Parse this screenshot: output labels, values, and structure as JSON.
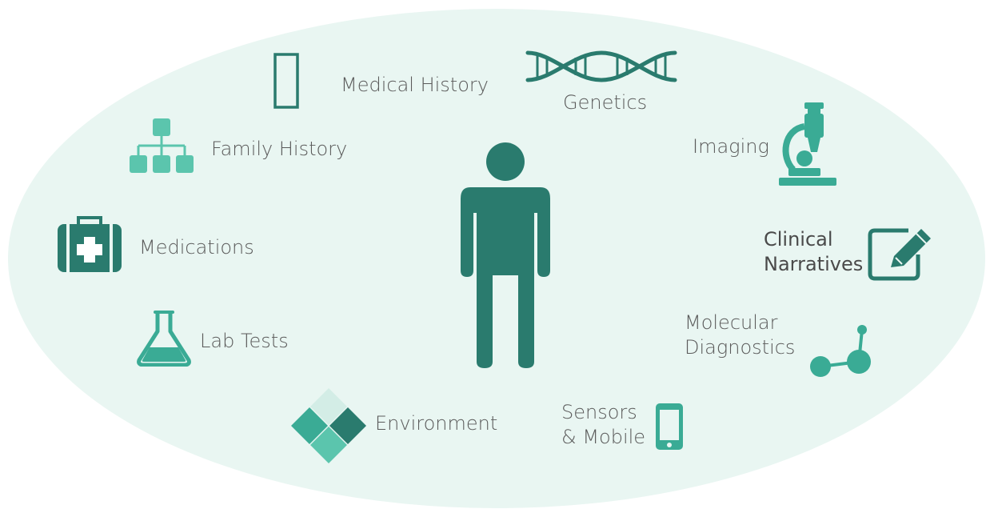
{
  "colors": {
    "background_ellipse": "#e9f6f2",
    "dark_teal": "#2a7b6e",
    "medium_teal": "#3aab95",
    "light_teal": "#5bc5ad",
    "pale_teal": "#d3ede6",
    "label_text": "#5a5a5a"
  },
  "center": {
    "icon": "person-icon"
  },
  "items": {
    "medical_history": {
      "label": "Medical History",
      "icon": "medical-history-icon"
    },
    "genetics": {
      "label": "Genetics",
      "icon": "dna-icon"
    },
    "family_history": {
      "label": "Family History",
      "icon": "family-tree-icon"
    },
    "imaging": {
      "label": "Imaging",
      "icon": "microscope-icon"
    },
    "medications": {
      "label": "Medications",
      "icon": "first-aid-kit-icon"
    },
    "clinical_narratives": {
      "line1": "Clinical",
      "line2": "Narratives",
      "icon": "pencil-note-icon"
    },
    "lab_tests": {
      "label": "Lab Tests",
      "icon": "flask-icon"
    },
    "molecular_diagnostics": {
      "line1": "Molecular",
      "line2": "Diagnostics",
      "icon": "molecule-icon"
    },
    "environment": {
      "label": "Environment",
      "icon": "environment-diamond-icon"
    },
    "sensors_mobile": {
      "line1": "Sensors",
      "line2": "& Mobile",
      "icon": "mobile-phone-icon"
    }
  }
}
